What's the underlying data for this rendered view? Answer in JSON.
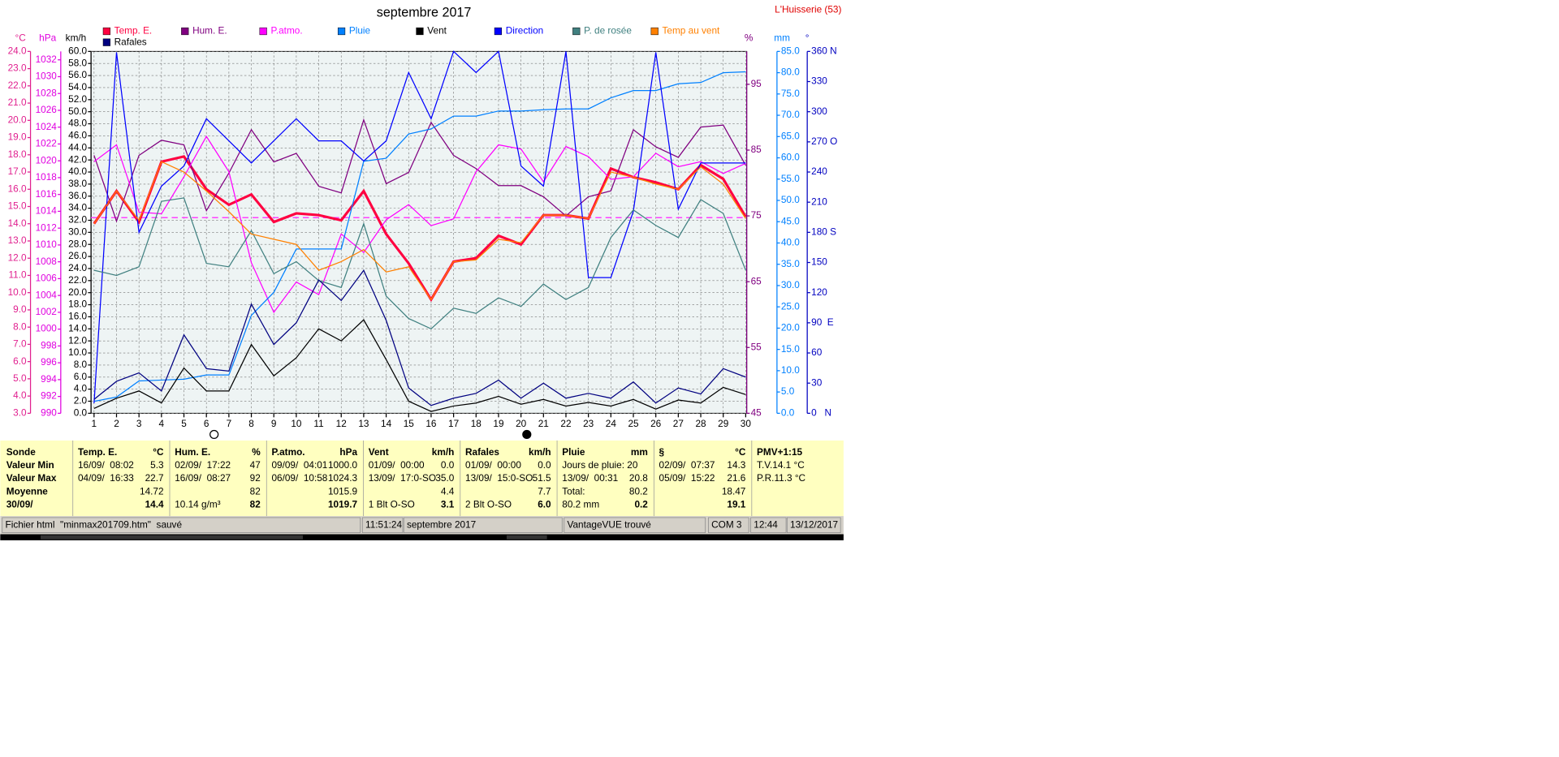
{
  "chart_data": {
    "type": "line",
    "title": "septembre 2017",
    "location": "L'Huisserie (53)",
    "x": [
      1,
      2,
      3,
      4,
      5,
      6,
      7,
      8,
      9,
      10,
      11,
      12,
      13,
      14,
      15,
      16,
      17,
      18,
      19,
      20,
      21,
      22,
      23,
      24,
      25,
      26,
      27,
      28,
      29,
      30
    ],
    "xlim": [
      1,
      30
    ],
    "grid": true,
    "axes": [
      {
        "unit": "°C",
        "color": "#e0208f",
        "ylim": [
          3,
          24
        ],
        "yticks": [
          {
            "value": 3,
            "label": "3.0"
          },
          {
            "value": 4,
            "label": "4.0"
          },
          {
            "value": 5,
            "label": "5.0"
          },
          {
            "value": 6,
            "label": "6.0"
          },
          {
            "value": 7,
            "label": "7.0"
          },
          {
            "value": 8,
            "label": "8.0"
          },
          {
            "value": 9,
            "label": "9.0"
          },
          {
            "value": 10,
            "label": "10.0"
          },
          {
            "value": 11,
            "label": "11.0"
          },
          {
            "value": 12,
            "label": "12.0"
          },
          {
            "value": 13,
            "label": "13.0"
          },
          {
            "value": 14,
            "label": "14.0"
          },
          {
            "value": 15,
            "label": "15.0"
          },
          {
            "value": 16,
            "label": "16.0"
          },
          {
            "value": 17,
            "label": "17.0"
          },
          {
            "value": 18,
            "label": "18.0"
          },
          {
            "value": 19,
            "label": "19.0"
          },
          {
            "value": 20,
            "label": "20.0"
          },
          {
            "value": 21,
            "label": "21.0"
          },
          {
            "value": 22,
            "label": "22.0"
          },
          {
            "value": 23,
            "label": "23.0"
          },
          {
            "value": 24,
            "label": "24.0"
          }
        ]
      },
      {
        "unit": "hPa",
        "color": "#e000e0",
        "ylim": [
          990,
          1033
        ],
        "yticks": [
          990,
          992,
          994,
          996,
          998,
          1000,
          1002,
          1004,
          1006,
          1008,
          1010,
          1012,
          1014,
          1016,
          1018,
          1020,
          1022,
          1024,
          1026,
          1028,
          1030,
          1032
        ]
      },
      {
        "unit": "km/h",
        "color": "#000000",
        "ylim": [
          0,
          60
        ],
        "yticks": [
          {
            "value": 0,
            "label": "0.0"
          },
          {
            "value": 2,
            "label": "2.0"
          },
          {
            "value": 4,
            "label": "4.0"
          },
          {
            "value": 6,
            "label": "6.0"
          },
          {
            "value": 8,
            "label": "8.0"
          },
          {
            "value": 10,
            "label": "10.0"
          },
          {
            "value": 12,
            "label": "12.0"
          },
          {
            "value": 14,
            "label": "14.0"
          },
          {
            "value": 16,
            "label": "16.0"
          },
          {
            "value": 18,
            "label": "18.0"
          },
          {
            "value": 20,
            "label": "20.0"
          },
          {
            "value": 22,
            "label": "22.0"
          },
          {
            "value": 24,
            "label": "24.0"
          },
          {
            "value": 26,
            "label": "26.0"
          },
          {
            "value": 28,
            "label": "28.0"
          },
          {
            "value": 30,
            "label": "30.0"
          },
          {
            "value": 32,
            "label": "32.0"
          },
          {
            "value": 34,
            "label": "34.0"
          },
          {
            "value": 36,
            "label": "36.0"
          },
          {
            "value": 38,
            "label": "38.0"
          },
          {
            "value": 40,
            "label": "40.0"
          },
          {
            "value": 42,
            "label": "42.0"
          },
          {
            "value": 44,
            "label": "44.0"
          },
          {
            "value": 46,
            "label": "46.0"
          },
          {
            "value": 48,
            "label": "48.0"
          },
          {
            "value": 50,
            "label": "50.0"
          },
          {
            "value": 52,
            "label": "52.0"
          },
          {
            "value": 54,
            "label": "54.0"
          },
          {
            "value": 56,
            "label": "56.0"
          },
          {
            "value": 58,
            "label": "58.0"
          },
          {
            "value": 60,
            "label": "60.0"
          }
        ]
      },
      {
        "unit": "%",
        "color": "#800080",
        "ylim": [
          45,
          100
        ],
        "yticks": [
          45,
          55,
          65,
          75,
          85,
          95
        ]
      },
      {
        "unit": "mm",
        "color": "#0080ff",
        "ylim": [
          0,
          85
        ],
        "yticks": [
          {
            "value": 0,
            "label": "0.0"
          },
          {
            "value": 5,
            "label": "5.0"
          },
          {
            "value": 10,
            "label": "10.0"
          },
          {
            "value": 15,
            "label": "15.0"
          },
          {
            "value": 20,
            "label": "20.0"
          },
          {
            "value": 25,
            "label": "25.0"
          },
          {
            "value": 30,
            "label": "30.0"
          },
          {
            "value": 35,
            "label": "35.0"
          },
          {
            "value": 40,
            "label": "40.0"
          },
          {
            "value": 45,
            "label": "45.0"
          },
          {
            "value": 50,
            "label": "50.0"
          },
          {
            "value": 55,
            "label": "55.0"
          },
          {
            "value": 60,
            "label": "60.0"
          },
          {
            "value": 65,
            "label": "65.0"
          },
          {
            "value": 70,
            "label": "70.0"
          },
          {
            "value": 75,
            "label": "75.0"
          },
          {
            "value": 80,
            "label": "80.0"
          },
          {
            "value": 85,
            "label": "85.0"
          }
        ]
      },
      {
        "unit": "°",
        "color": "#0000c0",
        "ylim": [
          0,
          360
        ],
        "yticks": [
          {
            "value": 0,
            "label": "0   N"
          },
          30,
          60,
          {
            "value": 90,
            "label": "90  E"
          },
          120,
          150,
          {
            "value": 180,
            "label": "180 S"
          },
          210,
          240,
          {
            "value": 270,
            "label": "270 O"
          },
          300,
          330,
          {
            "value": 360,
            "label": "360 N"
          }
        ]
      }
    ],
    "reference_line": {
      "value": 1013.25,
      "axis": 1,
      "color": "#ff40ff"
    },
    "series": [
      {
        "name": "Temp. E.",
        "color": "#ff0040",
        "axis": 0,
        "width": 2.5,
        "values": [
          14.0,
          15.9,
          14.1,
          17.6,
          17.9,
          16.0,
          15.1,
          15.7,
          14.1,
          14.6,
          14.5,
          14.2,
          15.9,
          13.4,
          11.7,
          9.6,
          11.8,
          12.0,
          13.3,
          12.8,
          14.5,
          14.5,
          14.3,
          17.2,
          16.7,
          16.4,
          16.0,
          17.4,
          16.6,
          14.4
        ]
      },
      {
        "name": "Hum. E.",
        "color": "#800080",
        "axis": 3,
        "width": 1,
        "values": [
          84.2,
          74.2,
          84.2,
          86.5,
          85.8,
          75.8,
          81.5,
          88.1,
          83.2,
          84.5,
          79.5,
          78.5,
          89.6,
          79.9,
          81.6,
          89.2,
          84.2,
          82.2,
          79.6,
          79.6,
          77.9,
          75.0,
          77.9,
          78.8,
          88.1,
          85.5,
          83.9,
          88.5,
          88.8,
          82.7
        ]
      },
      {
        "name": "P.atmo.",
        "color": "#ff00ff",
        "axis": 1,
        "width": 1,
        "values": [
          1019.9,
          1021.9,
          1013.9,
          1013.7,
          1018.1,
          1022.9,
          1018.7,
          1007.9,
          1002.0,
          1005.6,
          1004.1,
          1011.3,
          1009.1,
          1013.0,
          1014.8,
          1012.3,
          1013.1,
          1018.7,
          1021.9,
          1021.4,
          1017.5,
          1021.7,
          1020.5,
          1017.8,
          1018.1,
          1020.9,
          1019.3,
          1019.9,
          1018.5,
          1019.7
        ]
      },
      {
        "name": "Pluie",
        "color": "#0080ff",
        "axis": 4,
        "width": 1,
        "values": [
          2.8,
          3.8,
          7.6,
          7.8,
          8.0,
          9.0,
          9.0,
          23.0,
          28.4,
          38.6,
          38.6,
          38.6,
          59.2,
          59.9,
          65.6,
          66.8,
          69.8,
          69.8,
          71.0,
          71.0,
          71.3,
          71.5,
          71.5,
          74.1,
          75.8,
          75.8,
          77.4,
          77.7,
          80.0,
          80.2
        ]
      },
      {
        "name": "Vent",
        "color": "#000000",
        "axis": 2,
        "width": 1,
        "values": [
          0.8,
          2.5,
          3.7,
          1.7,
          7.5,
          3.7,
          3.7,
          11.4,
          6.2,
          9.2,
          14.0,
          12.0,
          15.5,
          8.9,
          2.0,
          0.3,
          1.2,
          1.7,
          2.8,
          1.5,
          2.3,
          1.2,
          1.8,
          1.2,
          2.3,
          0.7,
          2.2,
          1.7,
          4.3,
          3.1
        ]
      },
      {
        "name": "Direction",
        "color": "#0000ff",
        "axis": 5,
        "width": 1,
        "values": [
          10,
          359,
          180,
          226,
          246,
          293,
          271,
          249,
          271,
          293,
          271,
          271,
          251,
          271,
          339,
          293,
          360,
          339,
          360,
          246,
          226,
          360,
          135,
          135,
          201,
          359,
          203,
          249,
          249,
          249
        ]
      },
      {
        "name": "P. de rosée",
        "color": "#408080",
        "axis": 0,
        "width": 1,
        "values": [
          11.3,
          11.0,
          11.5,
          15.3,
          15.5,
          11.7,
          11.5,
          13.6,
          11.1,
          11.8,
          10.7,
          10.3,
          14.0,
          9.8,
          8.5,
          7.9,
          9.1,
          8.8,
          9.7,
          9.2,
          10.5,
          9.6,
          10.3,
          13.2,
          14.8,
          13.9,
          13.2,
          15.4,
          14.6,
          11.3
        ]
      },
      {
        "name": "Temp au vent",
        "color": "#ff8000",
        "axis": 0,
        "width": 1,
        "values": [
          14.0,
          15.9,
          14.2,
          17.6,
          17.0,
          15.9,
          14.7,
          13.4,
          13.1,
          12.8,
          11.3,
          11.8,
          12.5,
          11.2,
          11.5,
          9.6,
          11.8,
          11.9,
          13.1,
          12.9,
          14.5,
          14.5,
          14.3,
          17.0,
          16.7,
          16.3,
          16.0,
          17.3,
          16.3,
          14.3
        ]
      },
      {
        "name": "Rafales",
        "color": "#000080",
        "axis": 2,
        "width": 1,
        "values": [
          2.3,
          5.3,
          6.7,
          3.7,
          13.0,
          7.4,
          7.0,
          18.1,
          11.4,
          15.0,
          22.1,
          18.7,
          23.7,
          15.4,
          4.2,
          1.3,
          2.5,
          3.3,
          5.5,
          2.5,
          5.0,
          2.5,
          3.3,
          2.5,
          5.2,
          1.7,
          4.2,
          3.2,
          7.4,
          6.0
        ]
      }
    ]
  },
  "table": {
    "row_labels": [
      "Sonde",
      "Valeur Min",
      "Valeur Max",
      "Moyenne",
      "30/09/"
    ],
    "columns": [
      {
        "name": "Temp. E.",
        "unit": "°C",
        "cells": [
          [
            "16/09/  08:02",
            "5.3"
          ],
          [
            "04/09/  16:33",
            "22.7"
          ],
          [
            null,
            "14.72"
          ],
          [
            null,
            "14.4"
          ]
        ]
      },
      {
        "name": "Hum. E.",
        "unit": "%",
        "cells": [
          [
            "02/09/  17:22",
            "47"
          ],
          [
            "16/09/  08:27",
            "92"
          ],
          [
            null,
            "82"
          ],
          [
            "10.14 g/m³",
            "82"
          ]
        ]
      },
      {
        "name": "P.atmo.",
        "unit": "hPa",
        "cells": [
          [
            "09/09/  04:01",
            "1000.0"
          ],
          [
            "06/09/  10:58",
            "1024.3"
          ],
          [
            null,
            "1015.9"
          ],
          [
            null,
            "1019.7"
          ]
        ]
      },
      {
        "name": "Vent",
        "unit": "km/h",
        "cells": [
          [
            "01/09/  00:00",
            "0.0"
          ],
          [
            "13/09/  17:0-SO",
            "35.0"
          ],
          [
            null,
            "4.4"
          ],
          [
            "1 Blt O-SO",
            "3.1"
          ]
        ]
      },
      {
        "name": "Rafales",
        "unit": "km/h",
        "cells": [
          [
            "01/09/  00:00",
            "0.0"
          ],
          [
            "13/09/  15:0-SO",
            "51.5"
          ],
          [
            null,
            "7.7"
          ],
          [
            "2 Blt O-SO",
            "6.0"
          ]
        ]
      },
      {
        "name": "Pluie",
        "unit": "mm",
        "cells": [
          [
            "Jours de pluie: 20",
            null
          ],
          [
            "13/09/  00:31",
            "20.8"
          ],
          [
            "Total:",
            "80.2"
          ],
          [
            "80.2 mm",
            "0.2"
          ]
        ]
      },
      {
        "name": "§",
        "unit": "°C",
        "cells": [
          [
            "02/09/  07:37",
            "14.3"
          ],
          [
            "05/09/  15:22",
            "21.6"
          ],
          [
            null,
            "18.47"
          ],
          [
            null,
            "19.1"
          ]
        ]
      },
      {
        "name": "PMV+1:15",
        "unit": null,
        "cells": [
          [
            "T.V.14.1 °C",
            null
          ],
          [
            "P.R.11.3 °C",
            null
          ],
          [
            null,
            null
          ],
          [
            null,
            null
          ]
        ]
      }
    ]
  },
  "status_bar": [
    "Fichier html  \"minmax201709.htm\"  sauvé",
    "11:51:24",
    "septembre 2017",
    "VantageVUE trouvé",
    "COM 3",
    "12:44",
    "13/12/2017"
  ]
}
